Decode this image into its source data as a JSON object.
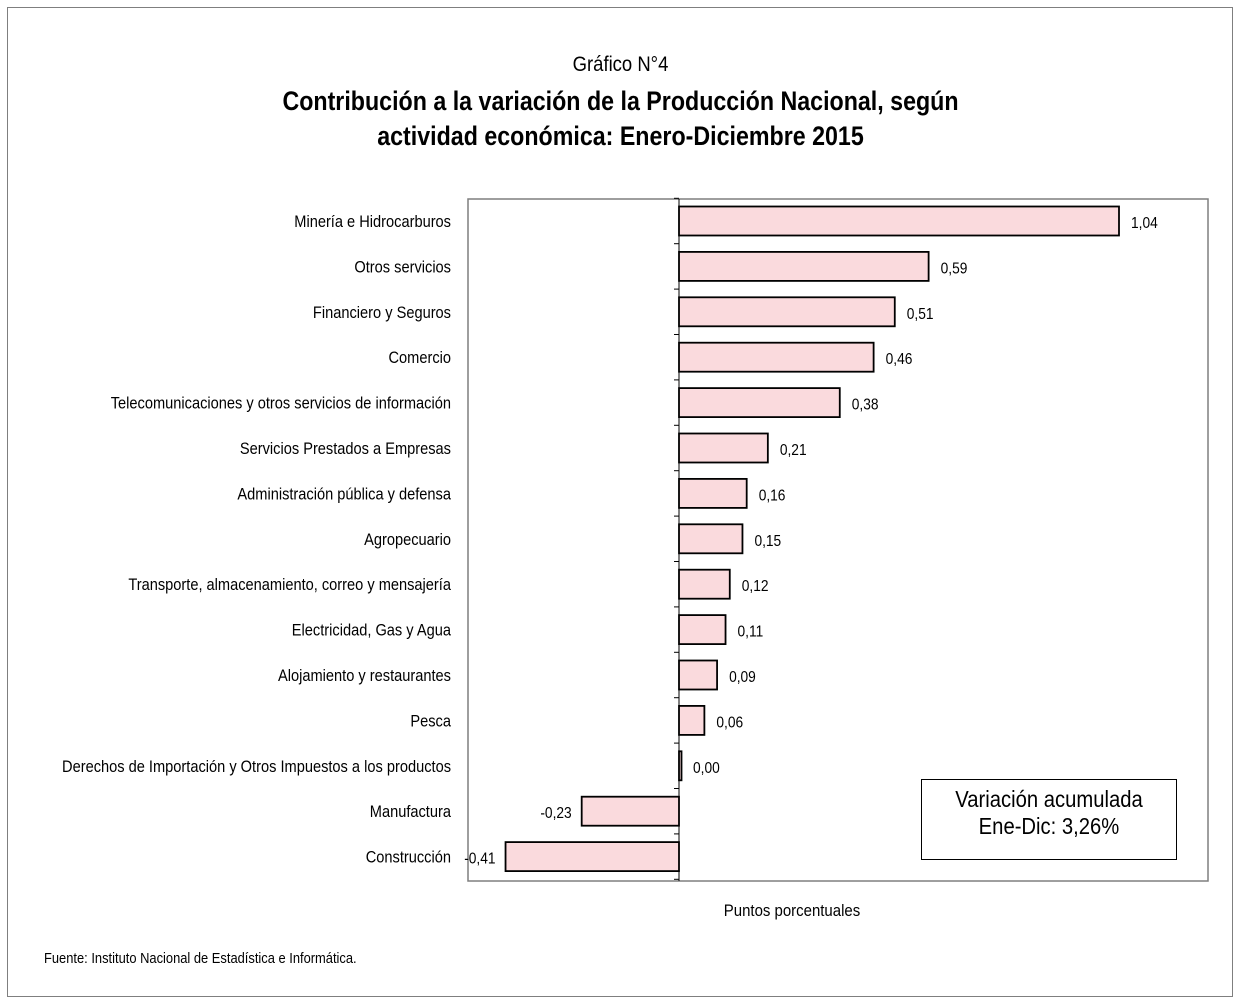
{
  "header": {
    "chart_number": "Gráfico N°4",
    "title_line_1": "Contribución a la variación de la Producción Nacional, según",
    "title_line_2": "actividad económica: Enero-Diciembre 2015"
  },
  "summary_box": {
    "line_1": "Variación acumulada",
    "line_2": "Ene-Dic: 3,26%"
  },
  "source": "Fuente: Instituto Nacional de Estadística e Informática.",
  "colors": {
    "bar_fill": "#fadadd",
    "bar_stroke": "#000000",
    "plot_border": "#7f7f7f"
  },
  "chart_data": {
    "type": "bar",
    "orientation": "horizontal",
    "title": "Contribución a la variación de la Producción Nacional, según actividad económica: Enero-Diciembre 2015",
    "xlabel": "Puntos porcentuales",
    "ylabel": "",
    "xlim": [
      -0.41,
      1.04
    ],
    "grid": false,
    "legend": "none",
    "categories": [
      "Minería e Hidrocarburos",
      "Otros servicios",
      "Financiero y Seguros",
      "Comercio",
      "Telecomunicaciones y otros servicios de información",
      "Servicios Prestados a Empresas",
      "Administración pública y defensa",
      "Agropecuario",
      "Transporte, almacenamiento, correo y mensajería",
      "Electricidad, Gas y Agua",
      "Alojamiento y restaurantes",
      "Pesca",
      "Derechos de Importación y Otros Impuestos a los productos",
      "Manufactura",
      "Construcción"
    ],
    "values": [
      1.04,
      0.59,
      0.51,
      0.46,
      0.38,
      0.21,
      0.16,
      0.15,
      0.12,
      0.11,
      0.09,
      0.06,
      0.0,
      -0.23,
      -0.41
    ],
    "value_labels": [
      "1,04",
      "0,59",
      "0,51",
      "0,46",
      "0,38",
      "0,21",
      "0,16",
      "0,15",
      "0,12",
      "0,11",
      "0,09",
      "0,06",
      "0,00",
      "-0,23",
      "-0,41"
    ]
  }
}
